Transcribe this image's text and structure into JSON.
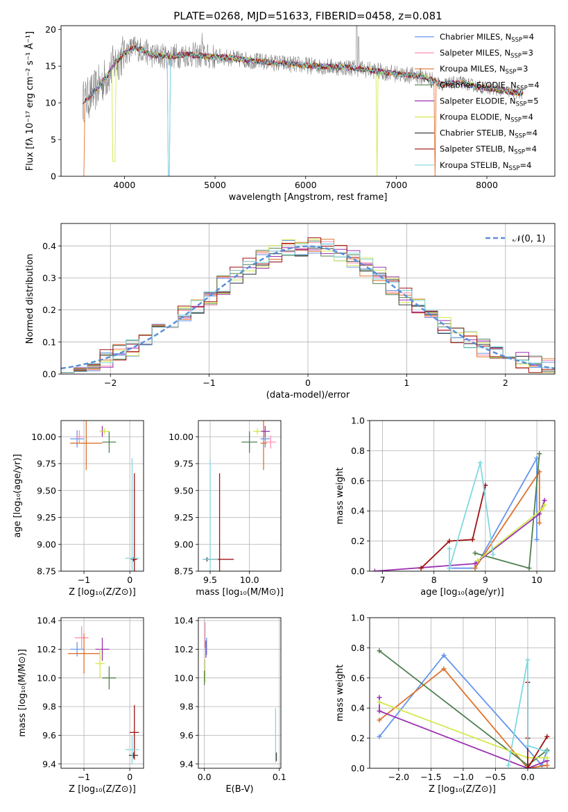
{
  "chart_data": [
    {
      "id": "spectrum",
      "type": "line",
      "title": "PLATE=0268, MJD=51633, FIBERID=0458, z=0.081",
      "xlabel": "wavelength [Angstrom, rest frame]",
      "ylabel": "Flux [fλ 10⁻¹⁷ erg cm⁻² s⁻¹ Å⁻¹]",
      "xlim": [
        3300,
        8750
      ],
      "ylim": [
        0,
        20.5
      ],
      "xticks": [
        4000,
        5000,
        6000,
        7000,
        8000
      ],
      "yticks": [
        0,
        5,
        10,
        15,
        20
      ],
      "observed_color": "#808080",
      "continuum": {
        "x": [
          3540,
          3600,
          3700,
          3800,
          3900,
          4000,
          4100,
          4200,
          4300,
          4500,
          4700,
          4900,
          5100,
          5300,
          5500,
          5700,
          5900,
          6100,
          6300,
          6500,
          6700,
          6900,
          7100,
          7300,
          7500,
          7700,
          7900,
          8100,
          8300,
          8400
        ],
        "y": [
          10.2,
          10.6,
          12.0,
          13.5,
          15.5,
          16.8,
          17.5,
          17.2,
          16.5,
          16.3,
          16.6,
          16.3,
          16.2,
          15.9,
          15.6,
          15.4,
          15.2,
          15.0,
          14.9,
          14.8,
          14.5,
          14.1,
          13.8,
          13.6,
          12.5,
          12.8,
          12.2,
          11.8,
          11.4,
          11.3
        ]
      },
      "legend_position": "upper right",
      "series": [
        {
          "name": "Chabrier MILES, N",
          "n": "4",
          "color": "#6495ed"
        },
        {
          "name": "Salpeter MILES, N",
          "n": "3",
          "color": "#ff8fb0"
        },
        {
          "name": "Kroupa MILES, N",
          "n": "3",
          "color": "#e0702a"
        },
        {
          "name": "Chabrier ELODIE, N",
          "n": "4",
          "color": "#4f7f4f"
        },
        {
          "name": "Salpeter ELODIE, N",
          "n": "5",
          "color": "#9b30b0"
        },
        {
          "name": "Kroupa ELODIE, N",
          "n": "4",
          "color": "#d4e84a"
        },
        {
          "name": "Chabrier STELIB, N",
          "n": "4",
          "color": "#404040"
        },
        {
          "name": "Salpeter STELIB, N",
          "n": "4",
          "color": "#a01010"
        },
        {
          "name": "Kroupa STELIB, N",
          "n": "4",
          "color": "#7fd8e0"
        }
      ]
    },
    {
      "id": "residuals",
      "type": "line",
      "xlabel": "(data-model)/error",
      "ylabel": "Normed distribution",
      "xlim": [
        -2.5,
        2.5
      ],
      "ylim": [
        0,
        0.47
      ],
      "xticks": [
        -2,
        -1,
        0,
        1,
        2
      ],
      "yticks": [
        0.0,
        0.1,
        0.2,
        0.3,
        0.4
      ],
      "grid": true,
      "reference": {
        "name": "𝒩(0, 1)",
        "color": "#5b8fd6"
      }
    },
    {
      "id": "age_vs_Z",
      "type": "scatter",
      "xlabel": "Z [log₁₀(Z/Z⊙)]",
      "ylabel": "age  [log₁₀(age/yr)]",
      "xlim": [
        -1.5,
        0.3
      ],
      "ylim": [
        8.75,
        10.15
      ],
      "xticks": [
        -1,
        0
      ],
      "yticks": [
        8.75,
        9.0,
        9.25,
        9.5,
        9.75,
        10.0
      ],
      "points": [
        {
          "c": 0,
          "x": -1.15,
          "y": 9.98,
          "xe": 0.15,
          "ye": 0.08
        },
        {
          "c": 1,
          "x": -1.1,
          "y": 10.0,
          "xe": 0.08,
          "ye": 0.06
        },
        {
          "c": 2,
          "x": -0.95,
          "y": 9.94,
          "xe": 0.35,
          "ye": 0.25
        },
        {
          "c": 3,
          "x": -0.45,
          "y": 9.95,
          "xe": 0.15,
          "ye": 0.1
        },
        {
          "c": 4,
          "x": -0.6,
          "y": 10.05,
          "xe": 0.05,
          "ye": 0.05
        },
        {
          "c": 5,
          "x": -0.55,
          "y": 10.05,
          "xe": 0.1,
          "ye": 0.03
        },
        {
          "c": 6,
          "x": 0.08,
          "y": 8.86,
          "xe": 0.06,
          "ye": 0.02
        },
        {
          "c": 7,
          "x": 0.1,
          "y": 8.86,
          "xe": 0.06,
          "ye": 0.8
        },
        {
          "c": 8,
          "x": 0.05,
          "y": 8.87,
          "xe": 0.15,
          "ye": 0.93
        }
      ]
    },
    {
      "id": "age_vs_mass",
      "type": "scatter",
      "xlabel": "mass [log₁₀(M/M⊙)]",
      "xlim": [
        9.35,
        10.4
      ],
      "ylim": [
        8.75,
        10.15
      ],
      "xticks": [
        9.5,
        10.0
      ],
      "yticks": [
        8.75,
        9.0,
        9.25,
        9.5,
        9.75,
        10.0
      ],
      "points": [
        {
          "c": 0,
          "x": 10.2,
          "y": 9.98,
          "xe": 0.06,
          "ye": 0.08
        },
        {
          "c": 1,
          "x": 10.27,
          "y": 9.95,
          "xe": 0.07,
          "ye": 0.06
        },
        {
          "c": 2,
          "x": 10.18,
          "y": 9.94,
          "xe": 0.04,
          "ye": 0.25
        },
        {
          "c": 3,
          "x": 10.0,
          "y": 9.95,
          "xe": 0.1,
          "ye": 0.1
        },
        {
          "c": 4,
          "x": 10.2,
          "y": 10.05,
          "xe": 0.06,
          "ye": 0.05
        },
        {
          "c": 5,
          "x": 10.1,
          "y": 10.05,
          "xe": 0.05,
          "ye": 0.03
        },
        {
          "c": 6,
          "x": 9.46,
          "y": 8.86,
          "xe": 0.04,
          "ye": 0.02
        },
        {
          "c": 7,
          "x": 9.62,
          "y": 8.86,
          "xe": 0.18,
          "ye": 0.8
        },
        {
          "c": 8,
          "x": 9.5,
          "y": 8.86,
          "xe": 0.1,
          "ye": 0.93
        }
      ]
    },
    {
      "id": "weight_vs_age",
      "type": "line",
      "xlabel": "age  [log₁₀(age/yr)]",
      "ylabel": "mass weight",
      "xlim": [
        6.75,
        10.35
      ],
      "ylim": [
        0,
        1.0
      ],
      "xticks": [
        7,
        8,
        9,
        10
      ],
      "yticks": [
        0.0,
        0.2,
        0.4,
        0.6,
        0.8,
        1.0
      ],
      "series": [
        {
          "c": 0,
          "x": [
            8.3,
            8.8,
            10.0,
            10.0
          ],
          "y": [
            0.02,
            0.02,
            0.75,
            0.21
          ]
        },
        {
          "c": 2,
          "x": [
            8.8,
            10.05,
            10.05
          ],
          "y": [
            0.02,
            0.66,
            0.32
          ]
        },
        {
          "c": 3,
          "x": [
            8.8,
            9.85,
            10.05
          ],
          "y": [
            0.12,
            0.02,
            0.78
          ]
        },
        {
          "c": 4,
          "x": [
            6.85,
            8.8,
            10.05,
            10.15
          ],
          "y": [
            0.0,
            0.05,
            0.38,
            0.47
          ]
        },
        {
          "c": 5,
          "x": [
            8.85,
            10.1,
            10.15
          ],
          "y": [
            0.07,
            0.41,
            0.44
          ]
        },
        {
          "c": 7,
          "x": [
            7.75,
            8.3,
            8.75,
            9.0
          ],
          "y": [
            0.02,
            0.2,
            0.21,
            0.57
          ]
        },
        {
          "c": 8,
          "x": [
            8.3,
            8.3,
            8.9,
            9.15
          ],
          "y": [
            0.15,
            0.02,
            0.72,
            0.11
          ]
        }
      ]
    },
    {
      "id": "mass_vs_Z",
      "type": "scatter",
      "xlabel": "Z [log₁₀(Z/Z⊙)]",
      "ylabel": "mass [log₁₀(M/M⊙)]",
      "xlim": [
        -1.5,
        0.3
      ],
      "ylim": [
        9.37,
        10.42
      ],
      "xticks": [
        -1,
        0
      ],
      "yticks": [
        9.4,
        9.6,
        9.8,
        10.0,
        10.2,
        10.4
      ],
      "points": [
        {
          "c": 0,
          "x": -1.15,
          "y": 10.2,
          "xe": 0.15,
          "ye": 0.05
        },
        {
          "c": 1,
          "x": -1.05,
          "y": 10.28,
          "xe": 0.15,
          "ye": 0.08
        },
        {
          "c": 2,
          "x": -1.0,
          "y": 10.17,
          "xe": 0.35,
          "ye": 0.14
        },
        {
          "c": 3,
          "x": -0.45,
          "y": 10.0,
          "xe": 0.15,
          "ye": 0.08
        },
        {
          "c": 4,
          "x": -0.6,
          "y": 10.2,
          "xe": 0.15,
          "ye": 0.08
        },
        {
          "c": 5,
          "x": -0.65,
          "y": 10.1,
          "xe": 0.1,
          "ye": 0.1
        },
        {
          "c": 6,
          "x": 0.08,
          "y": 9.46,
          "xe": 0.1,
          "ye": 0.02
        },
        {
          "c": 7,
          "x": 0.1,
          "y": 9.62,
          "xe": 0.1,
          "ye": 0.19
        },
        {
          "c": 8,
          "x": 0.05,
          "y": 9.5,
          "xe": 0.15,
          "ye": 0.1
        }
      ]
    },
    {
      "id": "mass_vs_ebv",
      "type": "scatter",
      "xlabel": "E(B-V)",
      "xlim": [
        -0.008,
        0.102
      ],
      "ylim": [
        9.37,
        10.42
      ],
      "xticks": [
        0.0,
        0.1
      ],
      "yticks": [
        9.4,
        9.6,
        9.8,
        10.0,
        10.2,
        10.4
      ],
      "points": [
        {
          "c": 0,
          "x": 0.003,
          "y": 10.22,
          "ye": 0.06
        },
        {
          "c": 1,
          "x": 0.001,
          "y": 10.3,
          "ye": 0.09
        },
        {
          "c": 4,
          "x": 0.002,
          "y": 10.2,
          "ye": 0.06
        },
        {
          "c": 5,
          "x": 0.001,
          "y": 10.05,
          "ye": 0.08
        },
        {
          "c": 3,
          "x": 0.0,
          "y": 10.0,
          "ye": 0.05
        },
        {
          "c": 8,
          "x": 0.095,
          "y": 9.6,
          "ye": 0.19
        },
        {
          "c": 6,
          "x": 0.096,
          "y": 9.45,
          "ye": 0.03
        }
      ]
    },
    {
      "id": "weight_vs_Z",
      "type": "line",
      "xlabel": "Z [log₁₀(Z/Z⊙)]",
      "ylabel": "mass weight",
      "xlim": [
        -2.45,
        0.42
      ],
      "ylim": [
        0,
        1.0
      ],
      "xticks": [
        -2.0,
        -1.5,
        -1.0,
        -0.5,
        0.0
      ],
      "yticks": [
        0.0,
        0.2,
        0.4,
        0.6,
        0.8,
        1.0
      ],
      "series": [
        {
          "c": 0,
          "x": [
            -2.3,
            -1.3,
            0.22,
            0.3
          ],
          "y": [
            0.21,
            0.75,
            0.02,
            0.12
          ]
        },
        {
          "c": 2,
          "x": [
            -2.3,
            -1.3,
            0.0,
            0.3
          ],
          "y": [
            0.32,
            0.66,
            0.0,
            0.02
          ]
        },
        {
          "c": 3,
          "x": [
            -2.3,
            0.0,
            0.3
          ],
          "y": [
            0.78,
            0.02,
            0.12
          ]
        },
        {
          "c": 4,
          "x": [
            -2.3,
            -2.3,
            0.0,
            0.3
          ],
          "y": [
            0.47,
            0.38,
            0.0,
            0.05
          ]
        },
        {
          "c": 5,
          "x": [
            -2.3,
            0.0,
            0.3
          ],
          "y": [
            0.44,
            0.07,
            0.07
          ]
        },
        {
          "c": 7,
          "x": [
            0.0,
            0.0,
            0.0,
            0.3
          ],
          "y": [
            0.57,
            0.2,
            0.0,
            0.21
          ]
        },
        {
          "c": 8,
          "x": [
            -0.3,
            0.0,
            0.0,
            0.3
          ],
          "y": [
            0.02,
            0.72,
            0.15,
            0.11
          ]
        }
      ]
    }
  ]
}
